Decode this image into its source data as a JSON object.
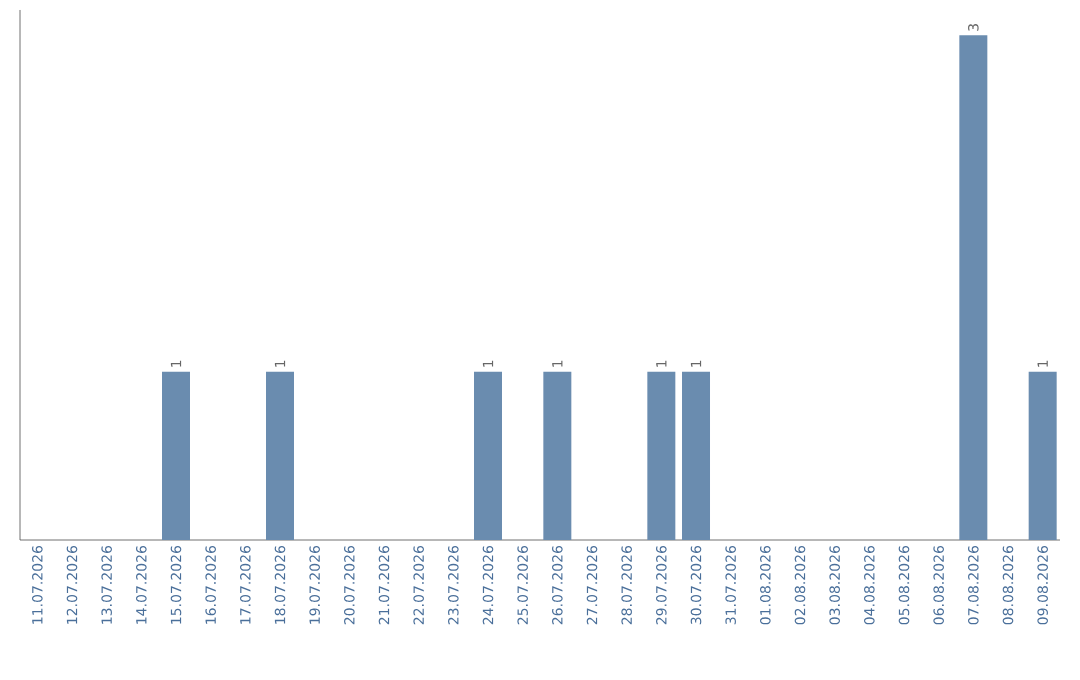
{
  "chart_data": {
    "type": "bar",
    "categories": [
      "11.07.2026",
      "12.07.2026",
      "13.07.2026",
      "14.07.2026",
      "15.07.2026",
      "16.07.2026",
      "17.07.2026",
      "18.07.2026",
      "19.07.2026",
      "20.07.2026",
      "21.07.2026",
      "22.07.2026",
      "23.07.2026",
      "24.07.2026",
      "25.07.2026",
      "26.07.2026",
      "27.07.2026",
      "28.07.2026",
      "29.07.2026",
      "30.07.2026",
      "31.07.2026",
      "01.08.2026",
      "02.08.2026",
      "03.08.2026",
      "04.08.2026",
      "05.08.2026",
      "06.08.2026",
      "07.08.2026",
      "08.08.2026",
      "09.08.2026"
    ],
    "values": [
      0,
      0,
      0,
      0,
      1,
      0,
      0,
      1,
      0,
      0,
      0,
      0,
      0,
      1,
      0,
      1,
      0,
      0,
      1,
      1,
      0,
      0,
      0,
      0,
      0,
      0,
      0,
      3,
      0,
      1
    ],
    "value_labels": [
      null,
      null,
      null,
      null,
      "1",
      null,
      null,
      "1",
      null,
      null,
      null,
      null,
      null,
      "1",
      null,
      "1",
      null,
      null,
      "1",
      "1",
      null,
      null,
      null,
      null,
      null,
      null,
      null,
      "3",
      null,
      "1"
    ],
    "color": "#6a8caf",
    "ylim": [
      0,
      3.15
    ],
    "tick_labels": "x"
  }
}
